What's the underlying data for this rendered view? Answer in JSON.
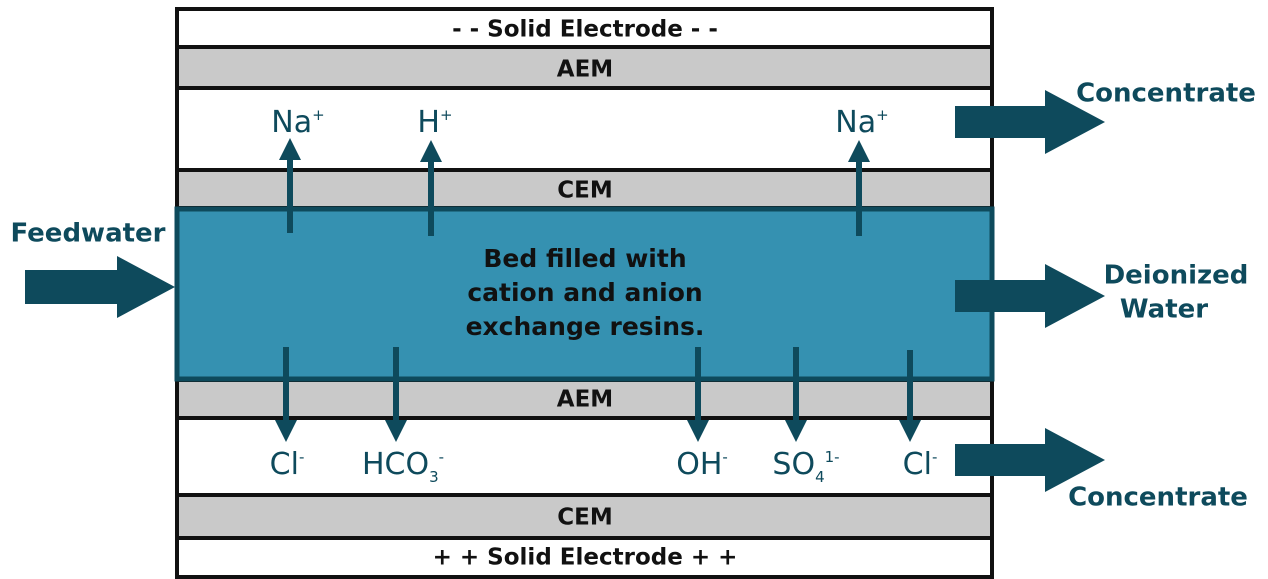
{
  "layers": {
    "top_electrode": "- - Solid Electrode - -",
    "aem_top": "AEM",
    "cem_top": "CEM",
    "aem_bottom": "AEM",
    "cem_bottom": "CEM",
    "bottom_electrode": "+ + Solid Electrode + +"
  },
  "bed": {
    "lines": [
      "Bed filled with",
      "cation and anion",
      "exchange resins."
    ]
  },
  "inputs": {
    "feedwater": "Feedwater"
  },
  "outputs": {
    "concentrate_top": "Concentrate",
    "deionized": [
      "Deionized",
      "Water"
    ],
    "concentrate_bottom": "Concentrate"
  },
  "ions_top": [
    {
      "base": "Na",
      "sup": "+"
    },
    {
      "base": "H",
      "sup": "+"
    },
    {
      "base": "Na",
      "sup": "+"
    }
  ],
  "ions_bottom": [
    {
      "base": "Cl",
      "sup": "-"
    },
    {
      "base": "HCO",
      "sub": "3",
      "sup": "-"
    },
    {
      "base": "OH",
      "sup": "-"
    },
    {
      "base": "SO",
      "sub": "4",
      "sup": "1-"
    },
    {
      "base": "Cl",
      "sup": "-"
    }
  ]
}
